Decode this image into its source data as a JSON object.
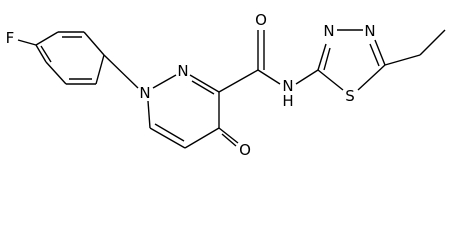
{
  "atoms": [
    "F",
    "N",
    "N",
    "O",
    "N",
    "H",
    "S",
    "N",
    "N",
    "O"
  ]
}
